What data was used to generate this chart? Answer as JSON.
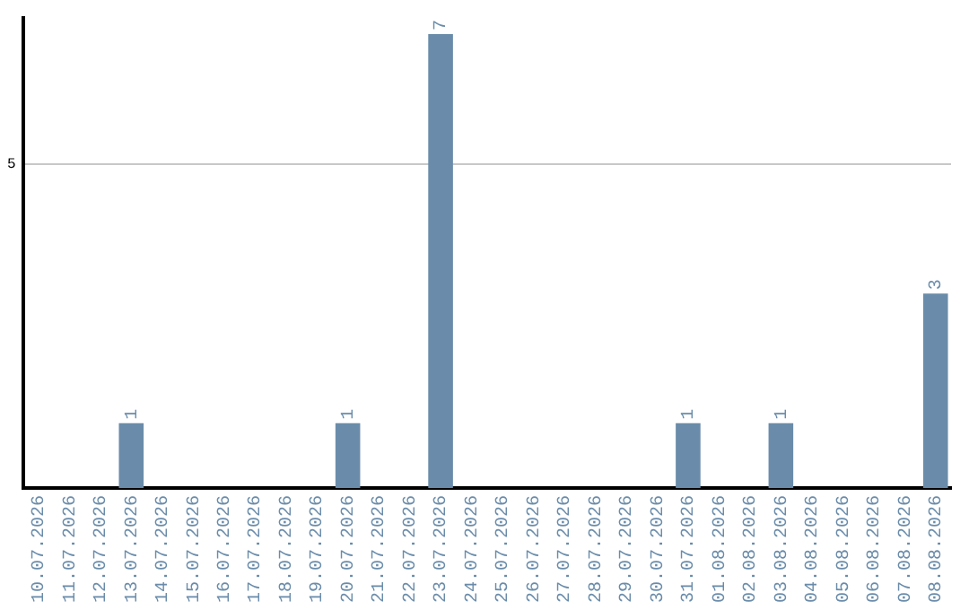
{
  "chart_data": {
    "type": "bar",
    "categories": [
      "10.07.2026",
      "11.07.2026",
      "12.07.2026",
      "13.07.2026",
      "14.07.2026",
      "15.07.2026",
      "16.07.2026",
      "17.07.2026",
      "18.07.2026",
      "19.07.2026",
      "20.07.2026",
      "21.07.2026",
      "22.07.2026",
      "23.07.2026",
      "24.07.2026",
      "25.07.2026",
      "26.07.2026",
      "27.07.2026",
      "28.07.2026",
      "29.07.2026",
      "30.07.2026",
      "31.07.2026",
      "01.08.2026",
      "02.08.2026",
      "03.08.2026",
      "04.08.2026",
      "05.08.2026",
      "06.08.2026",
      "07.08.2026",
      "08.08.2026"
    ],
    "values": [
      0,
      0,
      0,
      1,
      0,
      0,
      0,
      0,
      0,
      0,
      1,
      0,
      0,
      7,
      0,
      0,
      0,
      0,
      0,
      0,
      0,
      1,
      0,
      0,
      1,
      0,
      0,
      0,
      0,
      3
    ],
    "value_labels": [
      null,
      null,
      null,
      "1",
      null,
      null,
      null,
      null,
      null,
      null,
      "1",
      null,
      null,
      "7",
      null,
      null,
      null,
      null,
      null,
      null,
      null,
      "1",
      null,
      null,
      "1",
      null,
      null,
      null,
      null,
      "3"
    ],
    "color": "#6a8caa",
    "ylim": [
      0,
      7.25
    ],
    "yticks": [
      5
    ],
    "grid": "y",
    "legend": false
  }
}
